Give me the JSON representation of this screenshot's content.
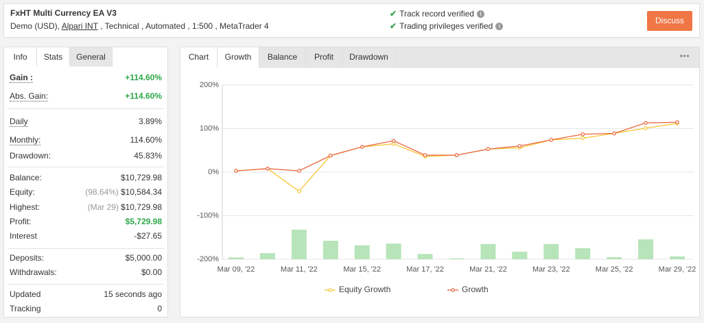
{
  "header": {
    "title": "FxHT Multi Currency EA V3",
    "account": "Demo (USD),",
    "broker": "Alpari INT",
    "details": ", Technical , Automated , 1:500 , MetaTrader 4",
    "verified": [
      "Track record verified",
      "Trading privileges verified"
    ],
    "button": "Discuss"
  },
  "stats": {
    "tabs": [
      "Info",
      "Stats",
      "General"
    ],
    "groups": [
      [
        {
          "label": "Gain :",
          "value": "+114.60%",
          "color": "#2ea84a",
          "underline": true,
          "bold": true
        },
        {
          "label": "Abs. Gain:",
          "value": "+114.60%",
          "color": "#2ea84a",
          "underline": true
        }
      ],
      [
        {
          "label": "Daily",
          "value": "3.89%",
          "underline": true
        },
        {
          "label": "Monthly:",
          "value": "114.60%",
          "underline": true
        },
        {
          "label": "Drawdown:",
          "value": "45.83%"
        }
      ],
      [
        {
          "label": "Balance:",
          "value": "$10,729.98"
        },
        {
          "label": "Equity:",
          "note": "(98.64%)",
          "value": "$10,584.34"
        },
        {
          "label": "Highest:",
          "note": "(Mar 29)",
          "value": "$10,729.98"
        },
        {
          "label": "Profit:",
          "value": "$5,729.98",
          "color": "#2ea84a"
        },
        {
          "label": "Interest",
          "value": "-$27.65"
        }
      ],
      [
        {
          "label": "Deposits:",
          "value": "$5,000.00"
        },
        {
          "label": "Withdrawals:",
          "value": "$0.00"
        }
      ],
      [
        {
          "label": "Updated",
          "value": "15 seconds ago"
        },
        {
          "label": "Tracking",
          "value": "0"
        }
      ]
    ]
  },
  "chart_tabs": [
    "Chart",
    "Growth",
    "Balance",
    "Profit",
    "Drawdown"
  ],
  "chart_data": {
    "type": "line",
    "categories": [
      "Mar 09, '22",
      null,
      "Mar 11, '22",
      null,
      "Mar 15, '22",
      null,
      "Mar 17, '22",
      null,
      "Mar 21, '22",
      null,
      "Mar 23, '22",
      null,
      "Mar 25, '22",
      null,
      "Mar 29, '22"
    ],
    "series": [
      {
        "name": "Equity Growth",
        "color": "#f5c431",
        "values": [
          3,
          8,
          -44,
          38,
          58,
          65,
          36,
          39,
          53,
          56,
          74,
          78,
          89,
          101,
          112
        ]
      },
      {
        "name": "Growth",
        "color": "#e8643c",
        "values": [
          3,
          8,
          3,
          38,
          58,
          72,
          39,
          39,
          53,
          60,
          74,
          87,
          89,
          113,
          114.6
        ]
      }
    ],
    "bars": {
      "color": "#b7e4b9",
      "axis": "y2",
      "values": [
        1,
        3.5,
        17,
        10.6,
        8,
        9,
        3,
        0.5,
        8.7,
        4.3,
        8.7,
        6.3,
        1.2,
        11.4,
        1.6
      ]
    },
    "ylim": [
      -200,
      200
    ],
    "yticks": [
      {
        "value": -200,
        "label": "-200%"
      },
      {
        "value": -100,
        "label": "-100%"
      },
      {
        "value": 0,
        "label": "0%"
      },
      {
        "value": 100,
        "label": "100%"
      },
      {
        "value": 200,
        "label": "200%"
      }
    ],
    "y2lim": [
      0,
      100
    ],
    "grid": true
  }
}
